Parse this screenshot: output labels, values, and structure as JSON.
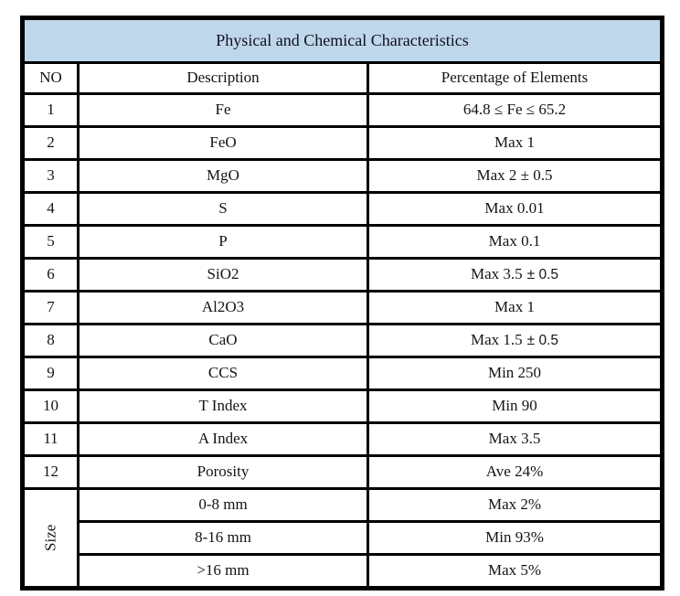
{
  "title": "Physical and Chemical Characteristics",
  "columns": {
    "no": "NO",
    "description": "Description",
    "percentage": "Percentage of Elements"
  },
  "rows": [
    {
      "no": "1",
      "description": "Fe",
      "value": "64.8 ≤ Fe ≤ 65.2",
      "value_alt": ""
    },
    {
      "no": "2",
      "description": "FeO",
      "value": "Max 1",
      "value_alt": ""
    },
    {
      "no": "3",
      "description": "MgO",
      "value": "Max 2 ± 0.5",
      "value_alt": ""
    },
    {
      "no": "4",
      "description": "S",
      "value": "Max 0.01",
      "value_alt": ""
    },
    {
      "no": "5",
      "description": "P",
      "value": "Max 0.1",
      "value_alt": ""
    },
    {
      "no": "6",
      "description": "SiO2",
      "value": "Max 3.5",
      "value_alt": "± 0.5"
    },
    {
      "no": "7",
      "description": "Al2O3",
      "value": "Max 1",
      "value_alt": ""
    },
    {
      "no": "8",
      "description": "CaO",
      "value": "Max 1.5",
      "value_alt": "± 0.5"
    },
    {
      "no": "9",
      "description": "CCS",
      "value": "Min 250",
      "value_alt": ""
    },
    {
      "no": "10",
      "description": "T Index",
      "value": "Min 90",
      "value_alt": ""
    },
    {
      "no": "11",
      "description": "A Index",
      "value": "Max 3.5",
      "value_alt": ""
    },
    {
      "no": "12",
      "description": "Porosity",
      "value": "Ave 24%",
      "value_alt": ""
    }
  ],
  "size_section": {
    "label": "Size",
    "rows": [
      {
        "description": "0-8 mm",
        "value": "Max 2%"
      },
      {
        "description": "8-16 mm",
        "value": "Min 93%"
      },
      {
        "description": ">16 mm",
        "value": "Max 5%"
      }
    ]
  },
  "colors": {
    "header_fill": "#bfd7eb",
    "border": "#000000",
    "text": "#141414",
    "background": "#ffffff"
  }
}
